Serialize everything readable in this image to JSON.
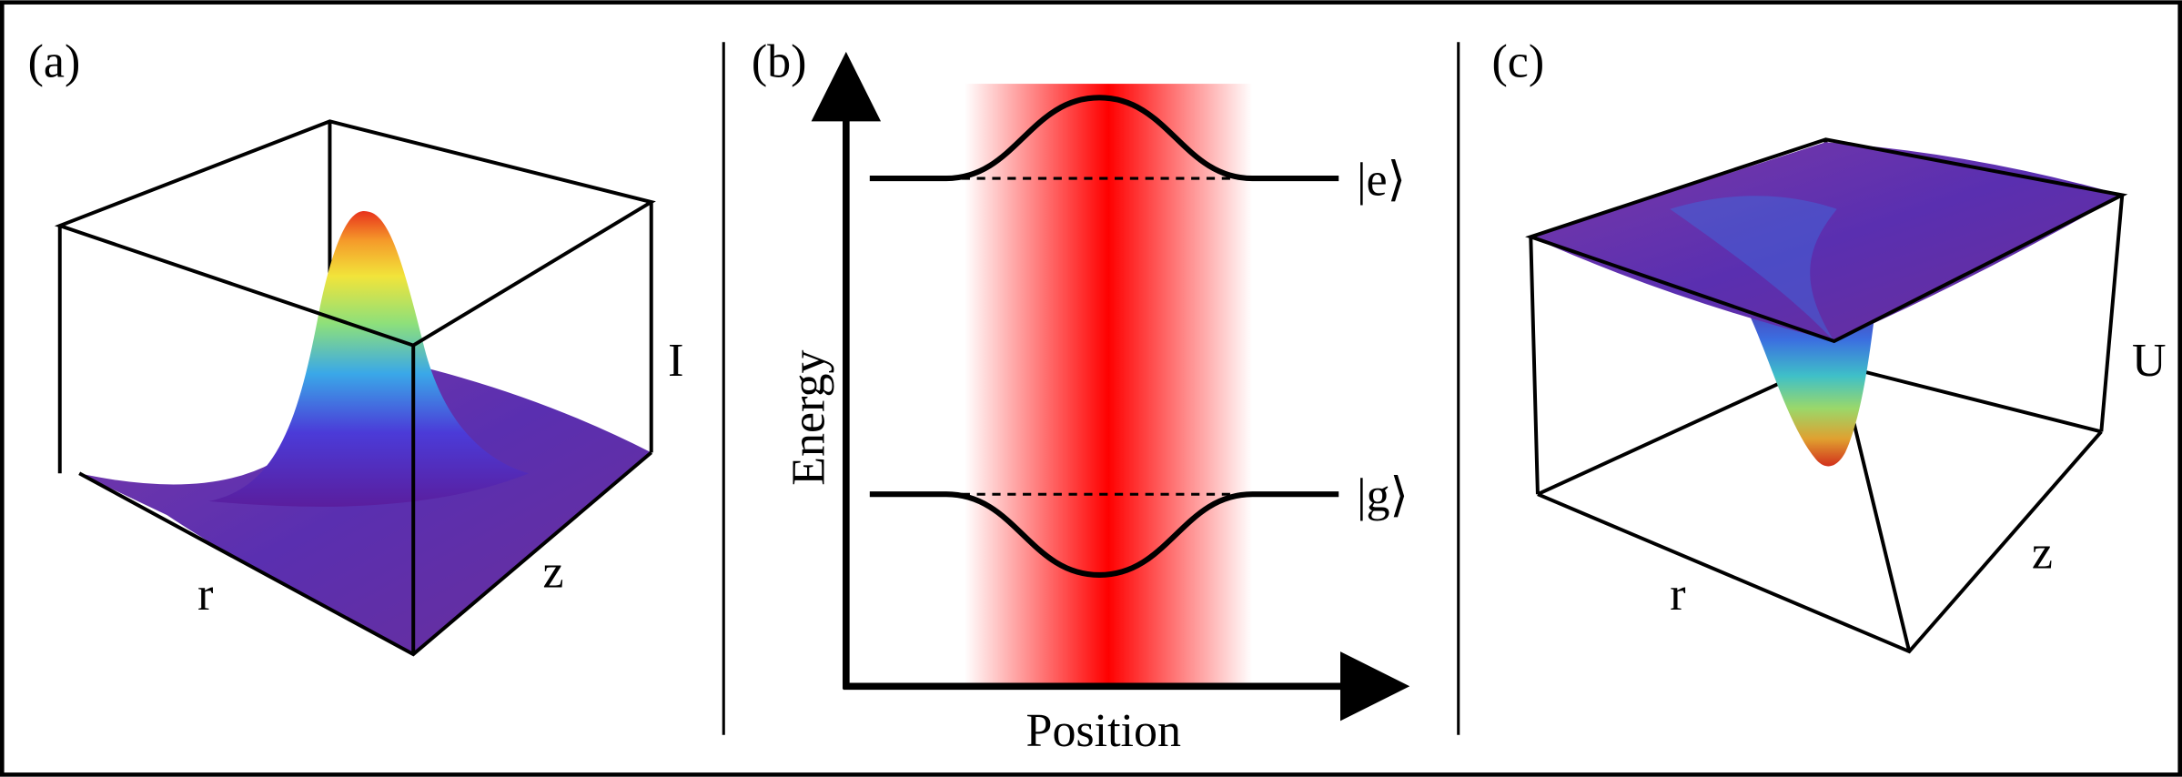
{
  "panels": [
    {
      "label": "(a)",
      "r_label": "r",
      "z_label": "z",
      "vertical_label": "I"
    },
    {
      "label": "(b)",
      "y_axis": "Energy",
      "x_axis": "Position",
      "levels": [
        "|e⟩",
        "|g⟩"
      ]
    },
    {
      "label": "(c)",
      "r_label": "r",
      "z_label": "z",
      "vertical_label": "U"
    }
  ]
}
